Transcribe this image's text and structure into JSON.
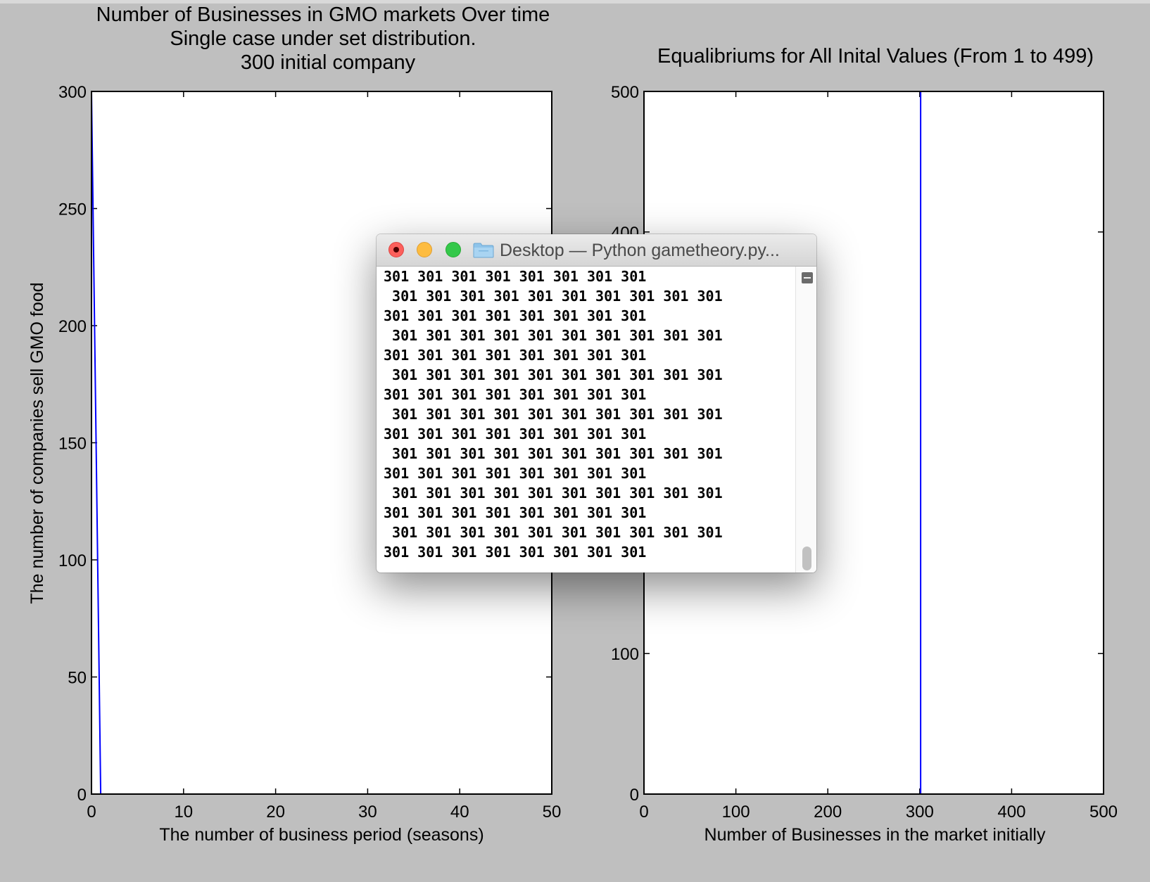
{
  "figure": {
    "left_title_lines": [
      "Number of Businesses in GMO markets Over time",
      "Single case under set distribution.",
      "300 initial company"
    ],
    "right_title": "Equalibriums for All Inital Values (From 1 to 499)"
  },
  "chart_data": [
    {
      "type": "line",
      "title": "Number of Businesses in GMO markets Over time\nSingle case under set distribution.\n300 initial company",
      "xlabel": "The number of business period (seasons)",
      "ylabel": "The number of companies sell GMO food",
      "xlim": [
        0,
        50
      ],
      "ylim": [
        0,
        300
      ],
      "xticks": [
        "0",
        "10",
        "20",
        "30",
        "40",
        "50"
      ],
      "yticks": [
        "0",
        "50",
        "100",
        "150",
        "200",
        "250",
        "300"
      ],
      "color": "#0000ff",
      "x": [
        0,
        1,
        2,
        3,
        4,
        5,
        6,
        7,
        8,
        9,
        10,
        11,
        12,
        13,
        14,
        15,
        16,
        17,
        18,
        19,
        20,
        21,
        22,
        23,
        24,
        25,
        26,
        27,
        28,
        29,
        30,
        31,
        32,
        33,
        34,
        35,
        36,
        37,
        38,
        39,
        40,
        41,
        42,
        43,
        44,
        45,
        46,
        47,
        48,
        49,
        50
      ],
      "y": [
        300,
        0,
        0,
        0,
        0,
        0,
        0,
        0,
        0,
        0,
        0,
        0,
        0,
        0,
        0,
        0,
        0,
        0,
        0,
        0,
        0,
        0,
        0,
        0,
        0,
        0,
        0,
        0,
        0,
        0,
        0,
        0,
        0,
        0,
        0,
        0,
        0,
        0,
        0,
        0,
        0,
        0,
        0,
        0,
        0,
        0,
        0,
        0,
        0,
        0,
        0
      ]
    },
    {
      "type": "line",
      "title": "Equalibriums for All Inital Values (From 1 to 499)",
      "xlabel": "Number of Businesses in the market initially",
      "ylabel": "",
      "xlim": [
        0,
        500
      ],
      "ylim": [
        0,
        500
      ],
      "xticks": [
        "0",
        "100",
        "200",
        "300",
        "400",
        "500"
      ],
      "yticks": [
        "0",
        "100",
        "400",
        "500"
      ],
      "color": "#0000ff",
      "x": [
        1,
        300,
        301,
        301,
        499
      ],
      "y": [
        0,
        0,
        0,
        500,
        500
      ]
    }
  ],
  "terminal": {
    "title": "Desktop — Python gametheory.py...",
    "lines": [
      "301 301 301 301 301 301 301 301",
      " 301 301 301 301 301 301 301 301 301 301",
      "301 301 301 301 301 301 301 301",
      " 301 301 301 301 301 301 301 301 301 301",
      "301 301 301 301 301 301 301 301",
      " 301 301 301 301 301 301 301 301 301 301",
      "301 301 301 301 301 301 301 301",
      " 301 301 301 301 301 301 301 301 301 301",
      "301 301 301 301 301 301 301 301",
      " 301 301 301 301 301 301 301 301 301 301",
      "301 301 301 301 301 301 301 301",
      " 301 301 301 301 301 301 301 301 301 301",
      "301 301 301 301 301 301 301 301",
      " 301 301 301 301 301 301 301 301 301 301",
      "301 301 301 301 301 301 301 301"
    ]
  }
}
